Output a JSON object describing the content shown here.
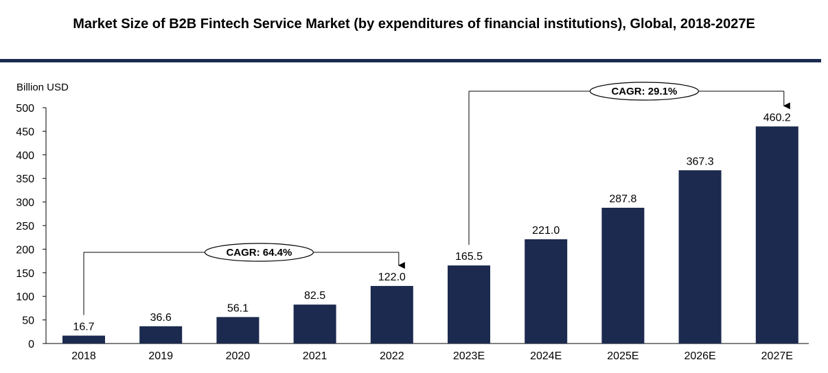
{
  "chart_data": {
    "type": "bar",
    "title": "Market Size of B2B Fintech Service Market (by expenditures of financial institutions), Global, 2018-2027E",
    "ylabel": "Billion USD",
    "xlabel": "",
    "categories": [
      "2018",
      "2019",
      "2020",
      "2021",
      "2022",
      "2023E",
      "2024E",
      "2025E",
      "2026E",
      "2027E"
    ],
    "values": [
      16.7,
      36.6,
      56.1,
      82.5,
      122.0,
      165.5,
      221.0,
      287.8,
      367.3,
      460.2
    ],
    "value_labels": [
      "16.7",
      "36.6",
      "56.1",
      "82.5",
      "122.0",
      "165.5",
      "221.0",
      "287.8",
      "367.3",
      "460.2"
    ],
    "ylim": [
      0,
      500
    ],
    "yticks": [
      0,
      50,
      100,
      150,
      200,
      250,
      300,
      350,
      400,
      450,
      500
    ],
    "grid": false,
    "legend": "none",
    "annotations": [
      {
        "label": "CAGR: 64.4%",
        "from_index": 0,
        "to_index": 4
      },
      {
        "label": "CAGR: 29.1%",
        "from_index": 5,
        "to_index": 9
      }
    ]
  },
  "colors": {
    "bar": "#1b2a4e",
    "title_rule": "#1b2a4e",
    "axis": "#000000",
    "text": "#000000"
  }
}
